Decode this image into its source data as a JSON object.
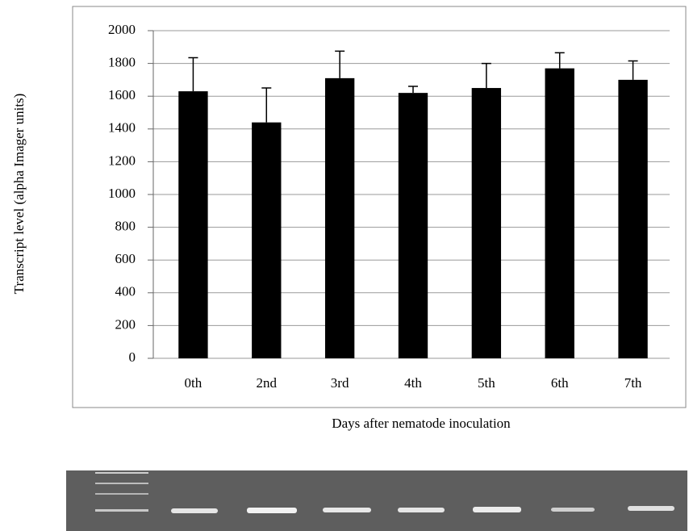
{
  "chart_data": {
    "type": "bar",
    "x_label": "Days after nematode inoculation",
    "y_label": "Transcript level (alpha Imager units)",
    "categories": [
      "0th",
      "2nd",
      "3rd",
      "4th",
      "5th",
      "6th",
      "7th"
    ],
    "values": [
      1630,
      1440,
      1710,
      1620,
      1650,
      1770,
      1700
    ],
    "errors": [
      205,
      210,
      165,
      40,
      150,
      95,
      115
    ],
    "color": "#000000",
    "ylim": [
      0,
      2000
    ],
    "yticks": [
      0,
      200,
      400,
      600,
      800,
      1000,
      1200,
      1400,
      1600,
      1800,
      2000
    ],
    "grid": true
  }
}
